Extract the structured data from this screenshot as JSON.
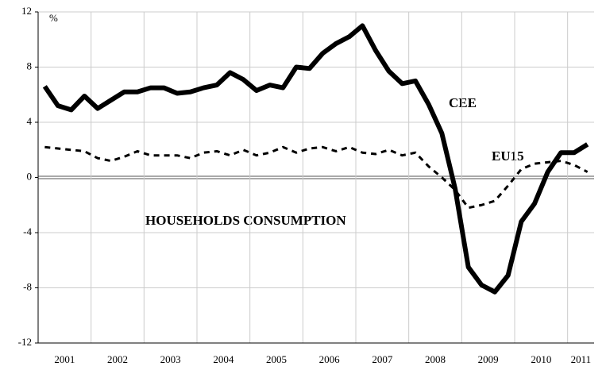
{
  "chart_data": {
    "type": "line",
    "unit_label": "%",
    "annotation": "HOUSEHOLDS CONSUMPTION",
    "x": [
      2001.125,
      2001.375,
      2001.625,
      2001.875,
      2002.125,
      2002.375,
      2002.625,
      2002.875,
      2003.125,
      2003.375,
      2003.625,
      2003.875,
      2004.125,
      2004.375,
      2004.625,
      2004.875,
      2005.125,
      2005.375,
      2005.625,
      2005.875,
      2006.125,
      2006.375,
      2006.625,
      2006.875,
      2007.125,
      2007.375,
      2007.625,
      2007.875,
      2008.125,
      2008.375,
      2008.625,
      2008.875,
      2009.125,
      2009.375,
      2009.625,
      2009.875,
      2010.125,
      2010.375,
      2010.625,
      2010.875,
      2011.125,
      2011.375
    ],
    "series": [
      {
        "name": "CEE",
        "color": "#000000",
        "dashed": false,
        "values": [
          6.6,
          5.2,
          4.9,
          5.9,
          5.0,
          5.6,
          6.2,
          6.2,
          6.5,
          6.5,
          6.1,
          6.2,
          6.5,
          6.7,
          7.6,
          7.1,
          6.3,
          6.7,
          6.5,
          8.0,
          7.9,
          9.0,
          9.7,
          10.2,
          11.0,
          9.2,
          7.7,
          6.8,
          7.0,
          5.3,
          3.2,
          -0.8,
          -6.5,
          -7.8,
          -8.3,
          -7.1,
          -3.2,
          -1.9,
          0.4,
          1.8,
          1.8,
          2.4
        ]
      },
      {
        "name": "EU15",
        "color": "#000000",
        "dashed": true,
        "values": [
          2.2,
          2.1,
          2.0,
          1.9,
          1.4,
          1.2,
          1.5,
          1.9,
          1.6,
          1.6,
          1.6,
          1.4,
          1.8,
          1.9,
          1.6,
          2.0,
          1.6,
          1.8,
          2.2,
          1.8,
          2.1,
          2.2,
          1.9,
          2.2,
          1.8,
          1.7,
          2.0,
          1.6,
          1.8,
          0.8,
          0.0,
          -0.9,
          -2.2,
          -2.0,
          -1.7,
          -0.6,
          0.6,
          1.0,
          1.1,
          1.2,
          0.9,
          0.4
        ]
      }
    ],
    "xlim": [
      2001,
      2011.5
    ],
    "xticks": [
      {
        "value": 2001.5,
        "label": "2001"
      },
      {
        "value": 2002.5,
        "label": "2002"
      },
      {
        "value": 2003.5,
        "label": "2003"
      },
      {
        "value": 2004.5,
        "label": "2004"
      },
      {
        "value": 2005.5,
        "label": "2005"
      },
      {
        "value": 2006.5,
        "label": "2006"
      },
      {
        "value": 2007.5,
        "label": "2007"
      },
      {
        "value": 2008.5,
        "label": "2008"
      },
      {
        "value": 2009.5,
        "label": "2009"
      },
      {
        "value": 2010.5,
        "label": "2010"
      },
      {
        "value": 2011.25,
        "label": "2011"
      }
    ],
    "xgrid": [
      2002,
      2003,
      2004,
      2005,
      2006,
      2007,
      2008,
      2009,
      2010,
      2011
    ],
    "ylim": [
      -12,
      12
    ],
    "yticks": [
      -12,
      -8,
      -4,
      0,
      4,
      8,
      12
    ],
    "grid": true
  }
}
